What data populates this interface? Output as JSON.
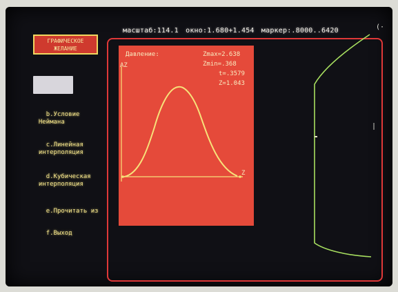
{
  "status_bar": {
    "scale": "масштаб:114.1",
    "window": "окно:1.680+1.454",
    "marker": "маркер:.8000..6420"
  },
  "corner_glyph": "(·",
  "menu": {
    "title_line1": "ГРАФИЧЕСКОЕ",
    "title_line2": "ЖЕЛАНИЕ",
    "items": [
      {
        "letter": "b.",
        "label": "Условие\n  Неймана"
      },
      {
        "letter": "c.",
        "label": "Линейная\n  интерполяция"
      },
      {
        "letter": "d.",
        "label": "Кубическая\n  интерполяция"
      },
      {
        "letter": "e.",
        "label": "Прочитать из"
      },
      {
        "letter": "f.",
        "label": "Выход"
      }
    ]
  },
  "plot": {
    "caption": "Давление:",
    "z_max": "Zmax=2.638",
    "z_min": "Zmin=.368",
    "t_value": "t=.3579",
    "z_value": "Z=1.043",
    "y_axis_label": "AZ",
    "x_end_label": "Z",
    "curve_color": "#f7e27a",
    "panel_color": "#e54a3a"
  },
  "colors": {
    "frame": "#e03838",
    "right_curve": "#a8e060"
  }
}
